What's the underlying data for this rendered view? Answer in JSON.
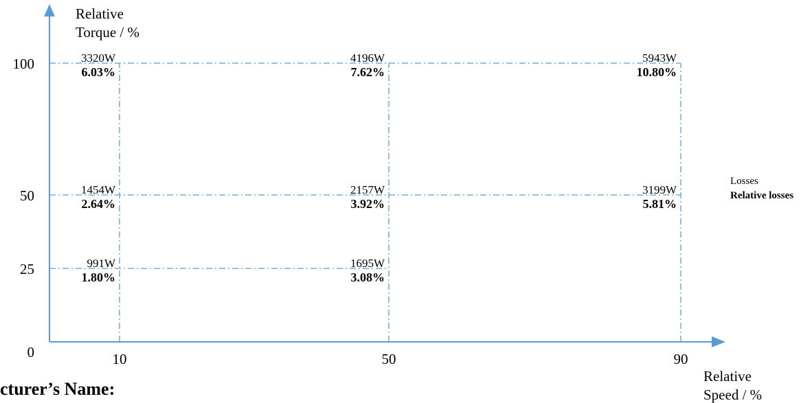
{
  "chart_data": {
    "type": "scatter",
    "title": "",
    "ylabel_line1": "Relative",
    "ylabel_line2": "Torque / %",
    "xlabel_line1": "Relative",
    "xlabel_line2": "Speed / %",
    "x_ticks": [
      "10",
      "50",
      "90"
    ],
    "y_ticks": [
      "0",
      "25",
      "50",
      "100"
    ],
    "x_tick_values": [
      10,
      50,
      90
    ],
    "y_tick_values": [
      0,
      25,
      50,
      100
    ],
    "grid": "dash-dot lines at each operating point",
    "points": [
      {
        "speed": 10,
        "torque": 100,
        "losses": "3320W",
        "relative_losses": "6.03%"
      },
      {
        "speed": 50,
        "torque": 100,
        "losses": "4196W",
        "relative_losses": "7.62%"
      },
      {
        "speed": 90,
        "torque": 100,
        "losses": "5943W",
        "relative_losses": "10.80%"
      },
      {
        "speed": 10,
        "torque": 50,
        "losses": "1454W",
        "relative_losses": "2.64%"
      },
      {
        "speed": 50,
        "torque": 50,
        "losses": "2157W",
        "relative_losses": "3.92%"
      },
      {
        "speed": 90,
        "torque": 50,
        "losses": "3199W",
        "relative_losses": "5.81%"
      },
      {
        "speed": 10,
        "torque": 25,
        "losses": "991W",
        "relative_losses": "1.80%"
      },
      {
        "speed": 50,
        "torque": 25,
        "losses": "1695W",
        "relative_losses": "3.08%"
      }
    ],
    "legend": {
      "losses": "Losses",
      "relative_losses": "Relative losses"
    }
  },
  "footer": {
    "text": "cturer’s Name:"
  }
}
